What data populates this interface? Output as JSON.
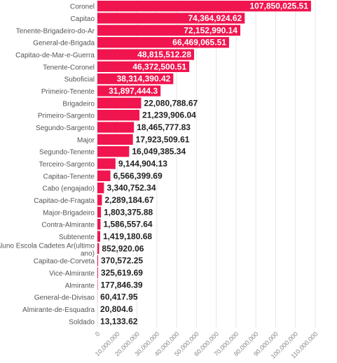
{
  "chart_data": {
    "type": "bar",
    "orientation": "horizontal",
    "categories": [
      "Coronel",
      "Capitao",
      "Tenente-Brigadeiro-do-Ar",
      "General-de-Brigada",
      "Capitao-de-Mar-e-Guerra",
      "Tenente-Coronel",
      "Suboficial",
      "Primeiro-Tenente",
      "Brigadeiro",
      "Primeiro-Sargento",
      "Segundo-Sargento",
      "Major",
      "Segundo-Tenente",
      "Terceiro-Sargento",
      "Capitao-Tenente",
      "Cabo (engajado)",
      "Capitao-de-Fragata",
      "Major-Brigadeiro",
      "Contra-Almirante",
      "Subtenente",
      [
        "Aluno Escola Cadetes Ar(ultimo",
        "ano)"
      ],
      "Capitao-de-Corveta",
      "Vice-Almirante",
      "Almirante",
      "General-de-Divisao",
      "Almirante-de-Esquadra",
      "Soldado"
    ],
    "values": [
      107850025.51,
      74364924.62,
      72152990.14,
      66469065.51,
      48815512.28,
      46372500.51,
      38314390.42,
      31897444.3,
      22080788.67,
      21239906.04,
      18465777.83,
      17923509.61,
      16049385.34,
      9144904.13,
      6566399.69,
      3340752.34,
      2289184.67,
      1803375.88,
      1586557.64,
      1419180.68,
      852920.06,
      370572.25,
      325619.69,
      177846.39,
      60417.95,
      20804.6,
      13133.62
    ],
    "value_labels": [
      "107,850,025.51",
      "74,364,924.62",
      "72,152,990.14",
      "66,469,065.51",
      "48,815,512.28",
      "46,372,500.51",
      "38,314,390.42",
      "31,897,444.3",
      "22,080,788.67",
      "21,239,906.04",
      "18,465,777.83",
      "17,923,509.61",
      "16,049,385.34",
      "9,144,904.13",
      "6,566,399.69",
      "3,340,752.34",
      "2,289,184.67",
      "1,803,375.88",
      "1,586,557.64",
      "1,419,180.68",
      "852,920.06",
      "370,572.25",
      "325,619.69",
      "177,846.39",
      "60,417.95",
      "20,804.6",
      "13,133.62"
    ],
    "x_ticks": [
      0,
      10000000,
      20000000,
      30000000,
      40000000,
      50000000,
      60000000,
      70000000,
      80000000,
      90000000,
      100000000,
      110000000
    ],
    "x_tick_labels": [
      "0",
      "10,000,000",
      "20,000,000",
      "30,000,000",
      "40,000,000",
      "50,000,000",
      "60,000,000",
      "70,000,000",
      "80,000,000",
      "90,000,000",
      "100,000,000",
      "110,000,000"
    ],
    "xlim": [
      0,
      110000000
    ],
    "grid": "vertical",
    "colors": {
      "bar": "#f0154f",
      "label_inside": "#ffffff",
      "label_outside": "#222222",
      "grid": "#e6e6e6"
    }
  }
}
